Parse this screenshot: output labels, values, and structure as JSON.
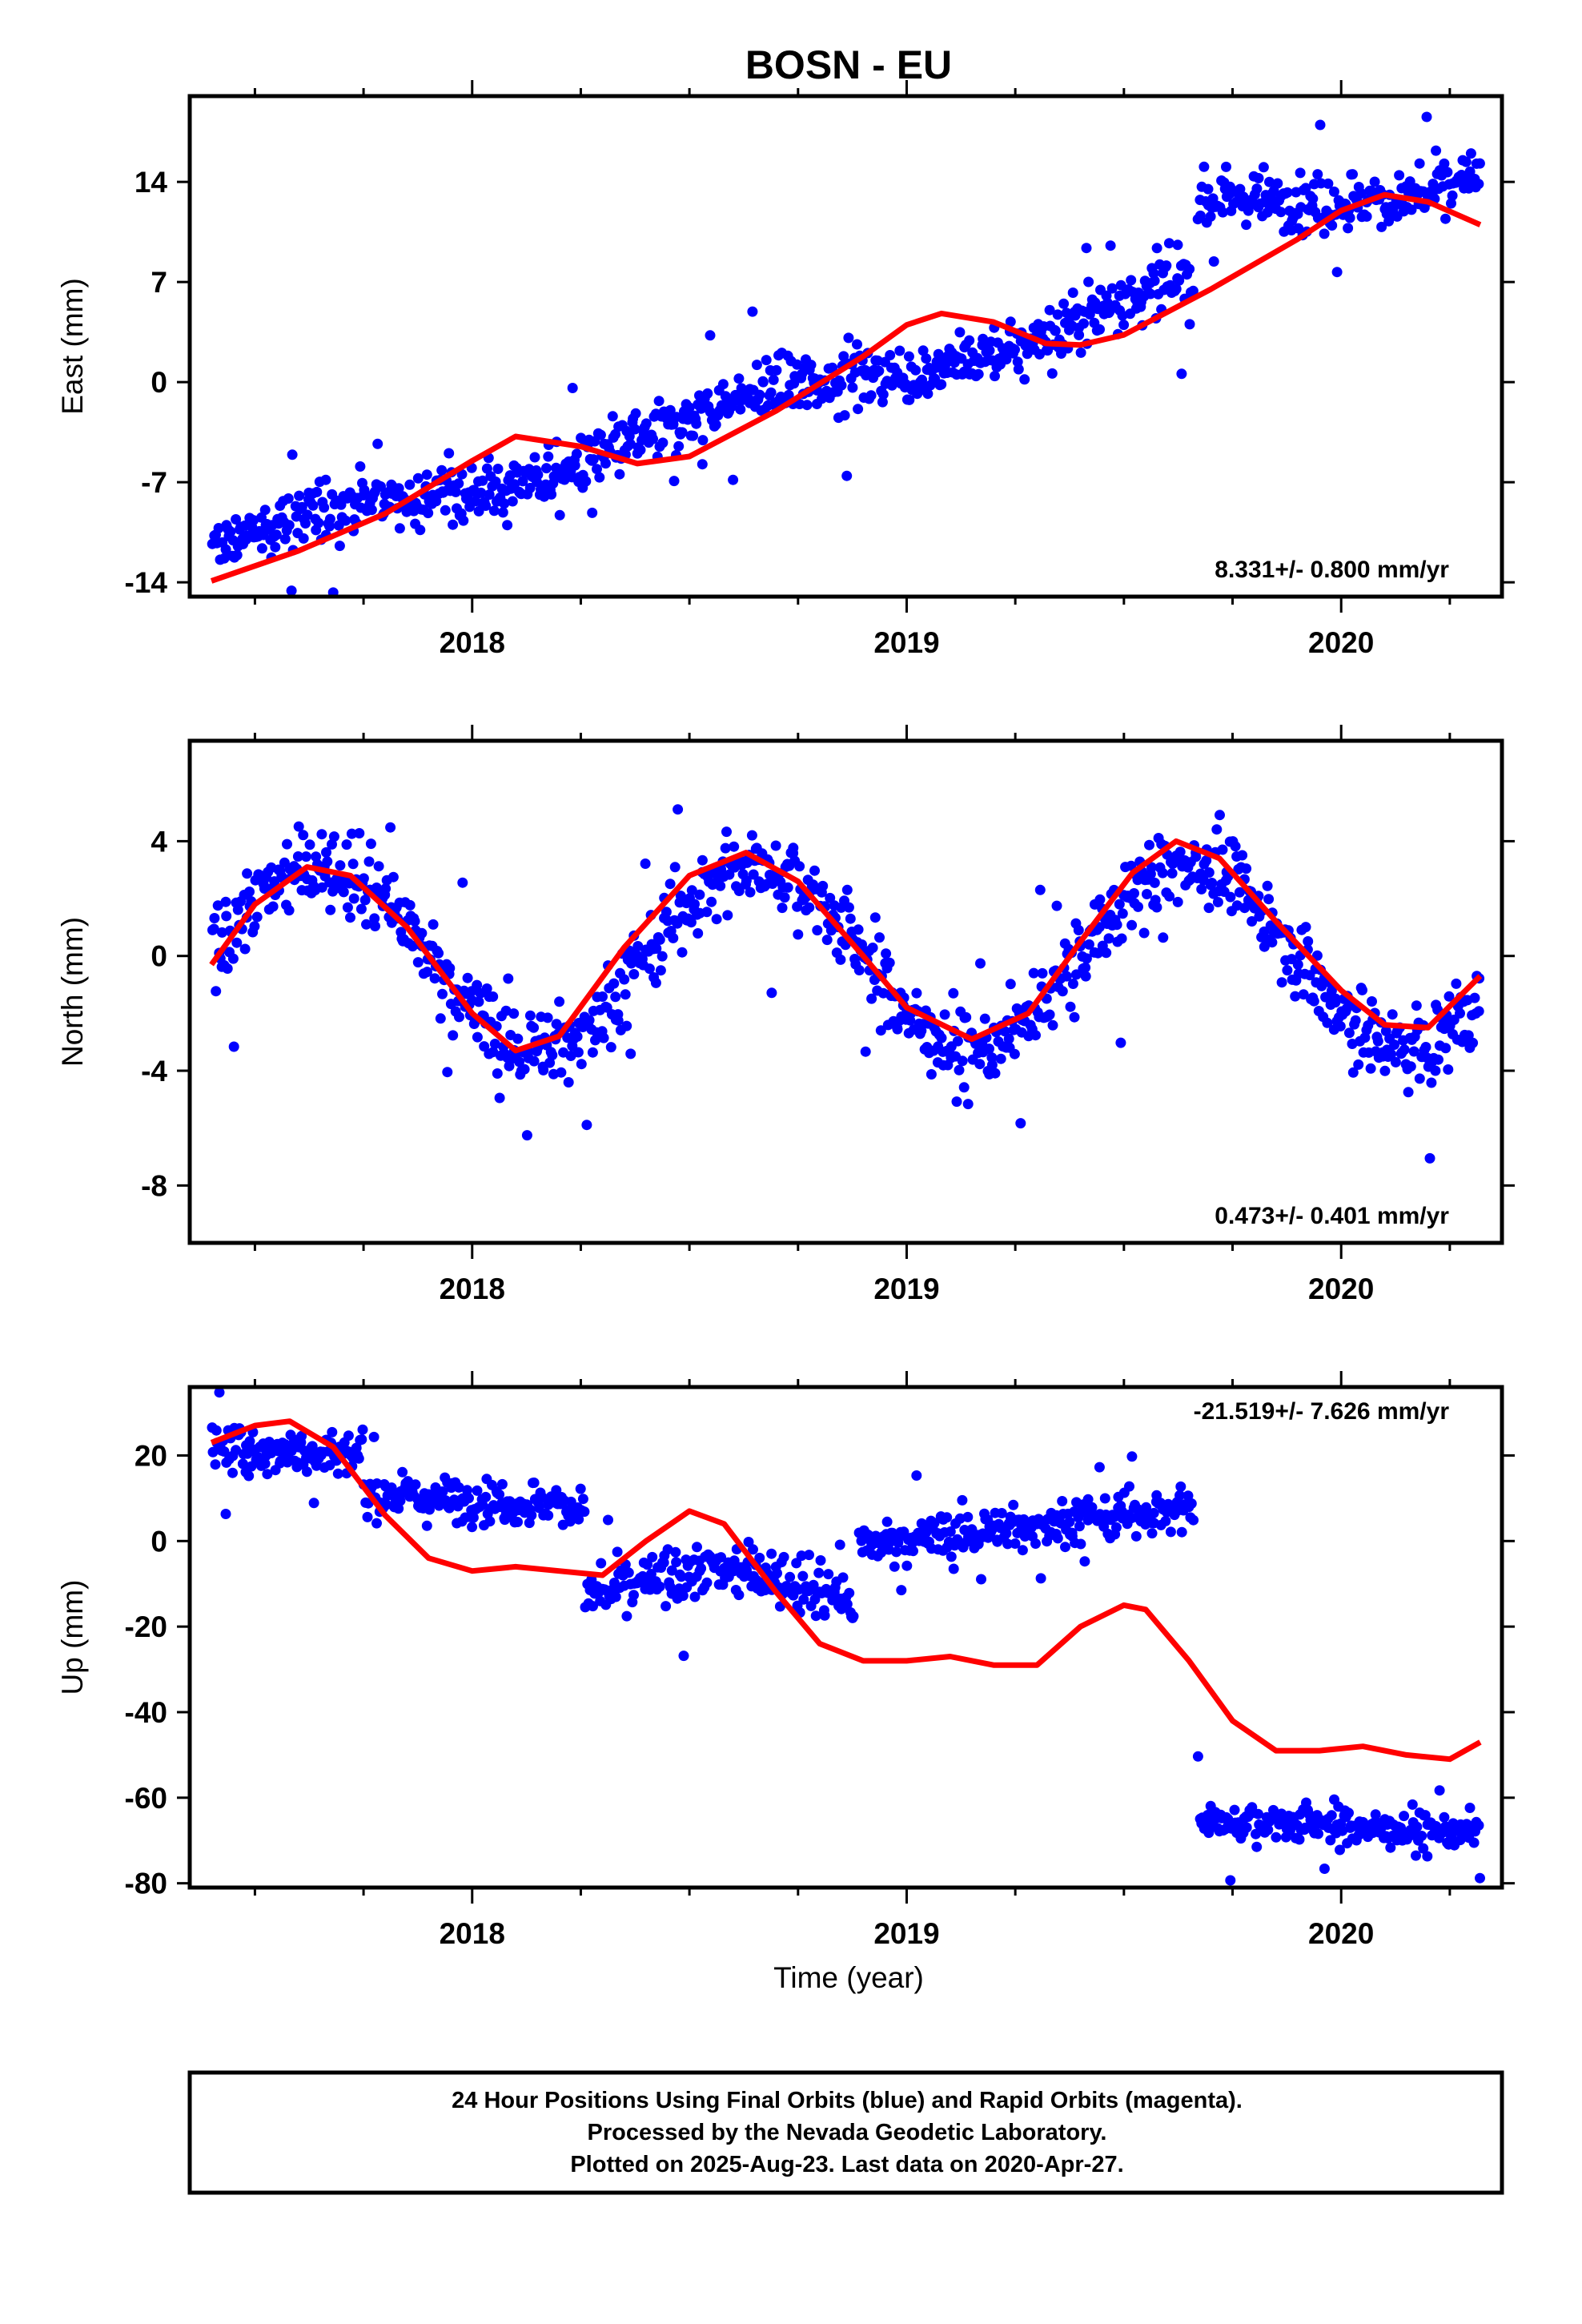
{
  "figure": {
    "title": "BOSN - EU",
    "footer": [
      "24 Hour Positions Using Final Orbits (blue) and Rapid Orbits (magenta).",
      "Processed by the Nevada Geodetic Laboratory.",
      "Plotted on 2025-Aug-23. Last data on 2020-Apr-27."
    ]
  },
  "colors": {
    "points": "#0000ff",
    "model": "#ff0000",
    "frame": "#000000"
  },
  "chart_data": [
    {
      "type": "scatter",
      "title": "BOSN - EU",
      "ylabel": "East (mm)",
      "xlabel": "",
      "xlim": [
        2017.35,
        2020.37
      ],
      "ylim": [
        -15,
        20
      ],
      "x_ticks": [
        "2018",
        "2019",
        "2020"
      ],
      "y_ticks": [
        "14",
        "7",
        "0",
        "-7",
        "-14"
      ],
      "rate": "8.331+/- 0.800 mm/yr",
      "series": [
        {
          "name": "Final Orbits (blue)",
          "kind": "points",
          "segments": [
            {
              "x0": 2017.4,
              "x1": 2019.66,
              "trend": [
                -12.0,
                6.5
              ],
              "noise": 1.6,
              "seasonal": 0.9
            },
            {
              "x0": 2019.67,
              "x1": 2020.32,
              "trend": [
                11.5,
                15.0
              ],
              "noise": 1.6,
              "seasonal": 1.2
            }
          ]
        },
        {
          "kind": "model",
          "points": [
            [
              2017.4,
              -13.9
            ],
            [
              2017.6,
              -11.8
            ],
            [
              2017.8,
              -9.2
            ],
            [
              2018.0,
              -5.5
            ],
            [
              2018.1,
              -3.8
            ],
            [
              2018.25,
              -4.5
            ],
            [
              2018.38,
              -5.7
            ],
            [
              2018.5,
              -5.2
            ],
            [
              2018.7,
              -2.0
            ],
            [
              2018.9,
              1.8
            ],
            [
              2019.0,
              4.0
            ],
            [
              2019.08,
              4.8
            ],
            [
              2019.2,
              4.2
            ],
            [
              2019.32,
              2.7
            ],
            [
              2019.4,
              2.6
            ],
            [
              2019.5,
              3.3
            ],
            [
              2019.7,
              6.5
            ],
            [
              2019.9,
              10.0
            ],
            [
              2020.0,
              12.0
            ],
            [
              2020.1,
              13.1
            ],
            [
              2020.2,
              12.6
            ],
            [
              2020.32,
              11.0
            ]
          ]
        }
      ]
    },
    {
      "type": "scatter",
      "ylabel": "North (mm)",
      "xlabel": "",
      "xlim": [
        2017.35,
        2020.37
      ],
      "ylim": [
        -10,
        7.5
      ],
      "x_ticks": [
        "2018",
        "2019",
        "2020"
      ],
      "y_ticks": [
        "4",
        "0",
        "-4",
        "-8"
      ],
      "rate": "0.473+/- 0.401 mm/yr",
      "series": [
        {
          "name": "Final Orbits (blue)",
          "kind": "points",
          "segments": [
            {
              "x0": 2017.4,
              "x1": 2020.32,
              "trend": [
                0.0,
                0.0
              ],
              "noise": 1.1,
              "seasonal": 3.2
            }
          ]
        },
        {
          "kind": "model",
          "points": [
            [
              2017.4,
              -0.3
            ],
            [
              2017.5,
              1.8
            ],
            [
              2017.62,
              3.1
            ],
            [
              2017.72,
              2.8
            ],
            [
              2017.85,
              1.0
            ],
            [
              2018.0,
              -2.0
            ],
            [
              2018.1,
              -3.3
            ],
            [
              2018.2,
              -2.8
            ],
            [
              2018.35,
              0.3
            ],
            [
              2018.5,
              2.8
            ],
            [
              2018.63,
              3.6
            ],
            [
              2018.75,
              2.6
            ],
            [
              2018.9,
              0.0
            ],
            [
              2019.0,
              -1.8
            ],
            [
              2019.15,
              -2.9
            ],
            [
              2019.28,
              -2.0
            ],
            [
              2019.4,
              0.5
            ],
            [
              2019.52,
              2.9
            ],
            [
              2019.62,
              4.0
            ],
            [
              2019.72,
              3.4
            ],
            [
              2019.85,
              1.2
            ],
            [
              2020.0,
              -1.2
            ],
            [
              2020.1,
              -2.4
            ],
            [
              2020.2,
              -2.5
            ],
            [
              2020.32,
              -0.7
            ]
          ]
        }
      ]
    },
    {
      "type": "scatter",
      "ylabel": "Up (mm)",
      "xlabel": "Time (year)",
      "xlim": [
        2017.35,
        2020.37
      ],
      "ylim": [
        -81,
        36
      ],
      "x_ticks": [
        "2018",
        "2019",
        "2020"
      ],
      "y_ticks": [
        "20",
        "0",
        "-20",
        "-40",
        "-60",
        "-80"
      ],
      "rate": "-21.519+/- 7.626 mm/yr",
      "series": [
        {
          "name": "Final Orbits (blue)",
          "kind": "points",
          "segments": [
            {
              "x0": 2017.4,
              "x1": 2017.75,
              "trend": [
                21.0,
                21.0
              ],
              "noise": 4.5,
              "seasonal": 0
            },
            {
              "x0": 2017.75,
              "x1": 2018.26,
              "trend": [
                11.0,
                8.0
              ],
              "noise": 4.0,
              "seasonal": 0
            },
            {
              "x0": 2018.26,
              "x1": 2018.88,
              "trend": [
                -8.0,
                -16.0
              ],
              "noise": 5.0,
              "seasonal": 6.0
            },
            {
              "x0": 2018.89,
              "x1": 2019.66,
              "trend": [
                -1.0,
                8.0
              ],
              "noise": 4.0,
              "seasonal": 0
            },
            {
              "x0": 2019.67,
              "x1": 2020.32,
              "trend": [
                -65.0,
                -68.0
              ],
              "noise": 3.5,
              "seasonal": 0
            }
          ]
        },
        {
          "kind": "model",
          "points": [
            [
              2017.4,
              23
            ],
            [
              2017.5,
              27
            ],
            [
              2017.58,
              28
            ],
            [
              2017.68,
              22
            ],
            [
              2017.8,
              6
            ],
            [
              2017.9,
              -4
            ],
            [
              2018.0,
              -7
            ],
            [
              2018.1,
              -6
            ],
            [
              2018.2,
              -7
            ],
            [
              2018.3,
              -8
            ],
            [
              2018.4,
              0
            ],
            [
              2018.5,
              7
            ],
            [
              2018.58,
              4
            ],
            [
              2018.7,
              -12
            ],
            [
              2018.8,
              -24
            ],
            [
              2018.9,
              -28
            ],
            [
              2019.0,
              -28
            ],
            [
              2019.1,
              -27
            ],
            [
              2019.2,
              -29
            ],
            [
              2019.3,
              -29
            ],
            [
              2019.4,
              -20
            ],
            [
              2019.5,
              -15
            ],
            [
              2019.55,
              -16
            ],
            [
              2019.65,
              -28
            ],
            [
              2019.75,
              -42
            ],
            [
              2019.85,
              -49
            ],
            [
              2019.95,
              -49
            ],
            [
              2020.05,
              -48
            ],
            [
              2020.15,
              -50
            ],
            [
              2020.25,
              -51
            ],
            [
              2020.32,
              -47
            ]
          ]
        }
      ]
    }
  ]
}
